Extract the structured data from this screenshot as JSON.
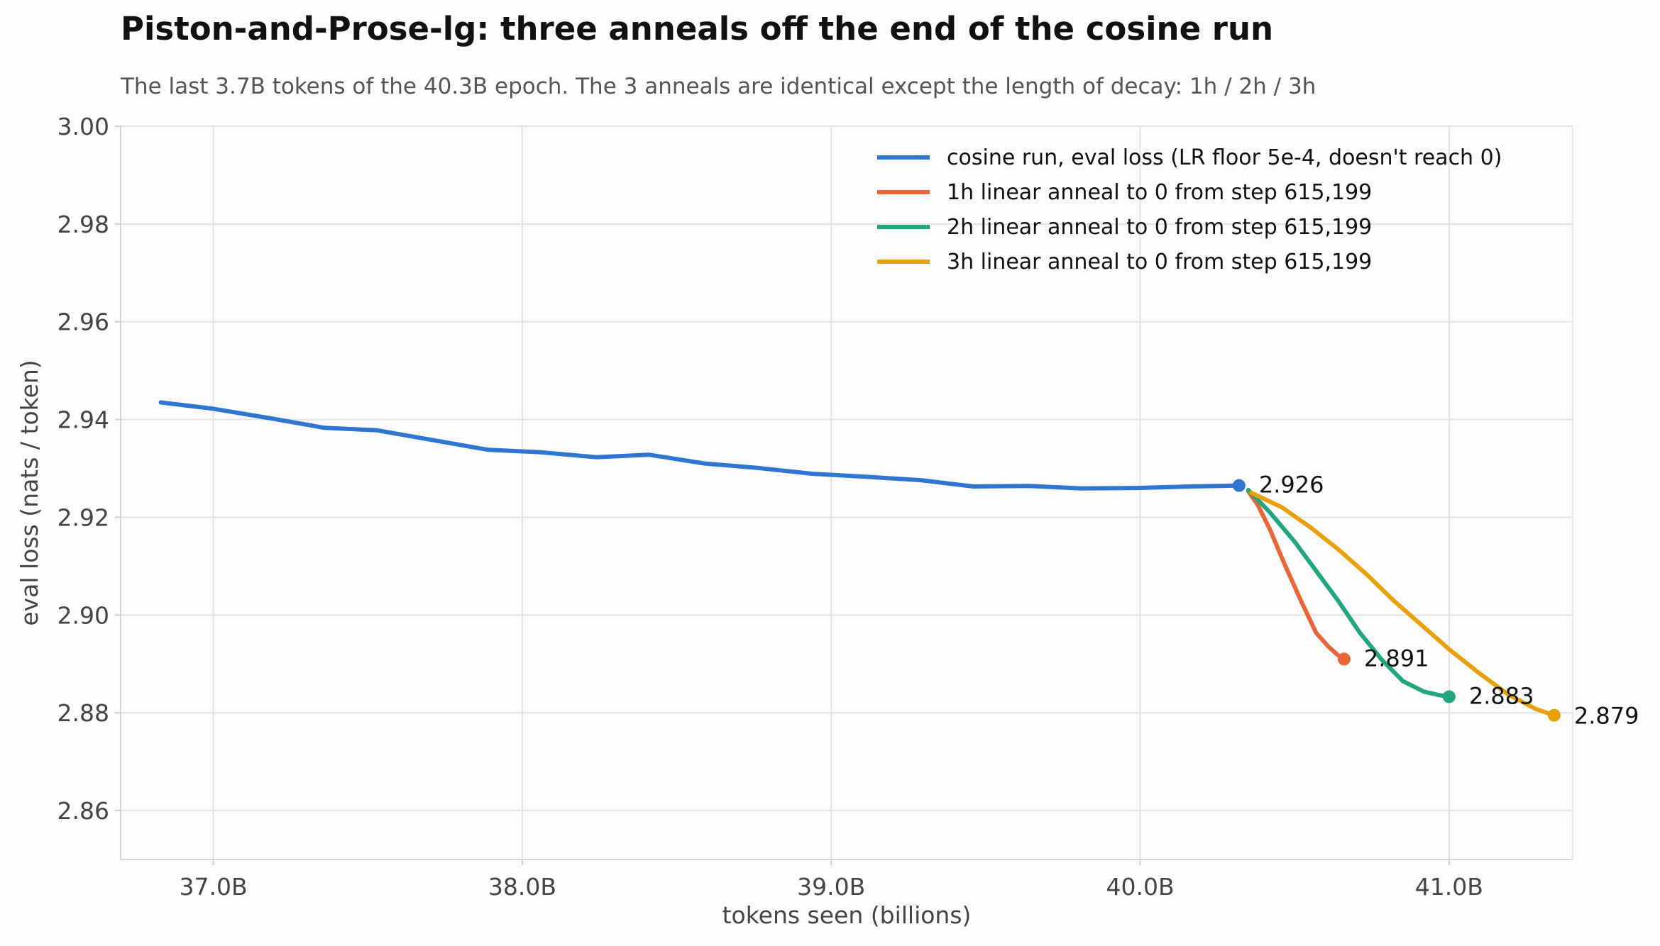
{
  "chart_data": {
    "type": "line",
    "title": "Piston-and-Prose-lg: three anneals off the end of the cosine run",
    "subtitle": "The last 3.7B tokens of the 40.3B epoch. The 3 anneals are identical except the length of decay: 1h / 2h / 3h",
    "xlabel": "tokens seen (billions)",
    "ylabel": "eval loss (nats / token)",
    "xlim": [
      36.7,
      41.4
    ],
    "ylim": [
      2.85,
      3.0
    ],
    "xticks": [
      37.0,
      38.0,
      39.0,
      40.0,
      41.0
    ],
    "xtick_labels": [
      "37.0B",
      "38.0B",
      "39.0B",
      "40.0B",
      "41.0B"
    ],
    "yticks": [
      2.86,
      2.88,
      2.9,
      2.92,
      2.94,
      2.96,
      2.98,
      3.0
    ],
    "ytick_labels": [
      "2.86",
      "2.88",
      "2.90",
      "2.92",
      "2.94",
      "2.96",
      "2.98",
      "3.00"
    ],
    "grid": true,
    "legend_position": "top-right",
    "series": [
      {
        "name": "cosine run, eval loss (LR floor 5e-4, doesn't reach 0)",
        "color": "#2f76d2",
        "x": [
          36.83,
          37.0,
          37.18,
          37.36,
          37.53,
          37.71,
          37.89,
          38.06,
          38.24,
          38.41,
          38.59,
          38.76,
          38.94,
          39.11,
          39.29,
          39.46,
          39.64,
          39.81,
          39.99,
          40.16,
          40.32
        ],
        "y": [
          2.9435,
          2.9422,
          2.9403,
          2.9383,
          2.9378,
          2.9358,
          2.9338,
          2.9333,
          2.9323,
          2.9328,
          2.931,
          2.9301,
          2.9289,
          2.9283,
          2.9276,
          2.9263,
          2.9264,
          2.9259,
          2.926,
          2.9263,
          2.9265
        ],
        "end_label": "2.926"
      },
      {
        "name": "1h linear anneal to 0 from step 615,199",
        "color": "#e8673a",
        "x": [
          40.35,
          40.38,
          40.42,
          40.47,
          40.52,
          40.57,
          40.61,
          40.64,
          40.66
        ],
        "y": [
          2.9253,
          2.9226,
          2.9175,
          2.91,
          2.903,
          2.8963,
          2.8935,
          2.8918,
          2.891
        ],
        "end_label": "2.891"
      },
      {
        "name": "2h linear anneal to 0 from step 615,199",
        "color": "#21a67f",
        "x": [
          40.35,
          40.42,
          40.5,
          40.57,
          40.64,
          40.71,
          40.78,
          40.85,
          40.92,
          40.97,
          41.0
        ],
        "y": [
          2.9256,
          2.921,
          2.915,
          2.909,
          2.903,
          2.8965,
          2.891,
          2.8865,
          2.8843,
          2.8836,
          2.8833
        ],
        "end_label": "2.883"
      },
      {
        "name": "3h linear anneal to 0 from step 615,199",
        "color": "#e8a10c",
        "x": [
          40.36,
          40.46,
          40.55,
          40.64,
          40.73,
          40.82,
          40.91,
          41.0,
          41.1,
          41.19,
          41.28,
          41.34
        ],
        "y": [
          2.925,
          2.922,
          2.918,
          2.9135,
          2.9085,
          2.903,
          2.898,
          2.893,
          2.888,
          2.8838,
          2.8808,
          2.8795
        ],
        "end_label": "2.879"
      }
    ]
  }
}
